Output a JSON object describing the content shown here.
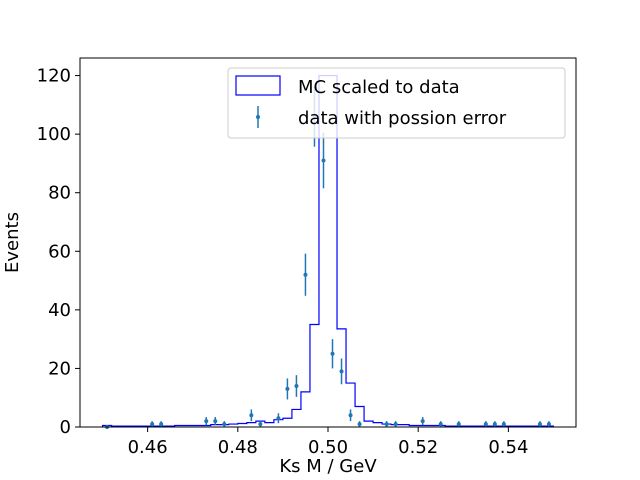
{
  "chart_data": {
    "type": "histogram",
    "xlabel": "Ks M / GeV",
    "ylabel": "Events",
    "xlim": [
      0.445,
      0.555
    ],
    "ylim": [
      0,
      126
    ],
    "xticks": [
      0.46,
      0.48,
      0.5,
      0.52,
      0.54
    ],
    "xtick_labels": [
      "0.46",
      "0.48",
      "0.50",
      "0.52",
      "0.54"
    ],
    "yticks": [
      0,
      20,
      40,
      60,
      80,
      100,
      120
    ],
    "ytick_labels": [
      "0",
      "20",
      "40",
      "60",
      "80",
      "100",
      "120"
    ],
    "grid": false,
    "legend_position": "upper-right",
    "colors": {
      "mc": "#0000ff",
      "data": "#1f77b4"
    },
    "series": [
      {
        "name": "MC scaled to data",
        "kind": "step",
        "bin_edges": [
          0.45,
          0.452,
          0.454,
          0.456,
          0.458,
          0.46,
          0.462,
          0.464,
          0.466,
          0.468,
          0.47,
          0.472,
          0.474,
          0.476,
          0.478,
          0.48,
          0.482,
          0.484,
          0.486,
          0.488,
          0.49,
          0.492,
          0.494,
          0.496,
          0.498,
          0.5,
          0.502,
          0.504,
          0.506,
          0.508,
          0.51,
          0.512,
          0.514,
          0.516,
          0.518,
          0.52,
          0.522,
          0.524,
          0.526,
          0.528,
          0.53,
          0.532,
          0.534,
          0.536,
          0.538,
          0.54,
          0.542,
          0.544,
          0.546,
          0.548,
          0.55
        ],
        "values": [
          0.5,
          0.3,
          0.3,
          0.3,
          0.3,
          0.3,
          0.3,
          0.3,
          0.5,
          0.5,
          0.5,
          0.5,
          0.8,
          0.8,
          1.0,
          1.2,
          1.5,
          2.0,
          1.5,
          2.5,
          3.0,
          6.0,
          12.0,
          35.0,
          120.0,
          120.0,
          33.5,
          15.0,
          7.0,
          2.0,
          1.5,
          1.0,
          0.8,
          0.8,
          0.5,
          0.5,
          0.5,
          0.5,
          0.3,
          0.3,
          0.3,
          0.3,
          0.3,
          0.3,
          0.3,
          0.3,
          0.3,
          0.3,
          0.3,
          0.3
        ]
      },
      {
        "name": "data with possion error",
        "kind": "errorbar",
        "x": [
          0.451,
          0.461,
          0.463,
          0.473,
          0.475,
          0.477,
          0.483,
          0.485,
          0.489,
          0.491,
          0.493,
          0.495,
          0.497,
          0.499,
          0.501,
          0.503,
          0.505,
          0.507,
          0.513,
          0.515,
          0.521,
          0.525,
          0.529,
          0.535,
          0.537,
          0.539,
          0.547,
          0.549
        ],
        "y": [
          0,
          1,
          1,
          2,
          2,
          1,
          4,
          1,
          3,
          13,
          14,
          52,
          106,
          91,
          25,
          19,
          4,
          1,
          1,
          1,
          2,
          1,
          1,
          1,
          1,
          1,
          1,
          1
        ],
        "yerr": [
          0,
          1,
          1,
          1.4,
          1.4,
          1,
          2,
          1,
          1.7,
          3.6,
          3.7,
          7.2,
          10.3,
          9.5,
          5,
          4.4,
          2,
          1,
          1,
          1,
          1.4,
          1,
          1,
          1,
          1,
          1,
          1,
          1
        ]
      }
    ]
  }
}
